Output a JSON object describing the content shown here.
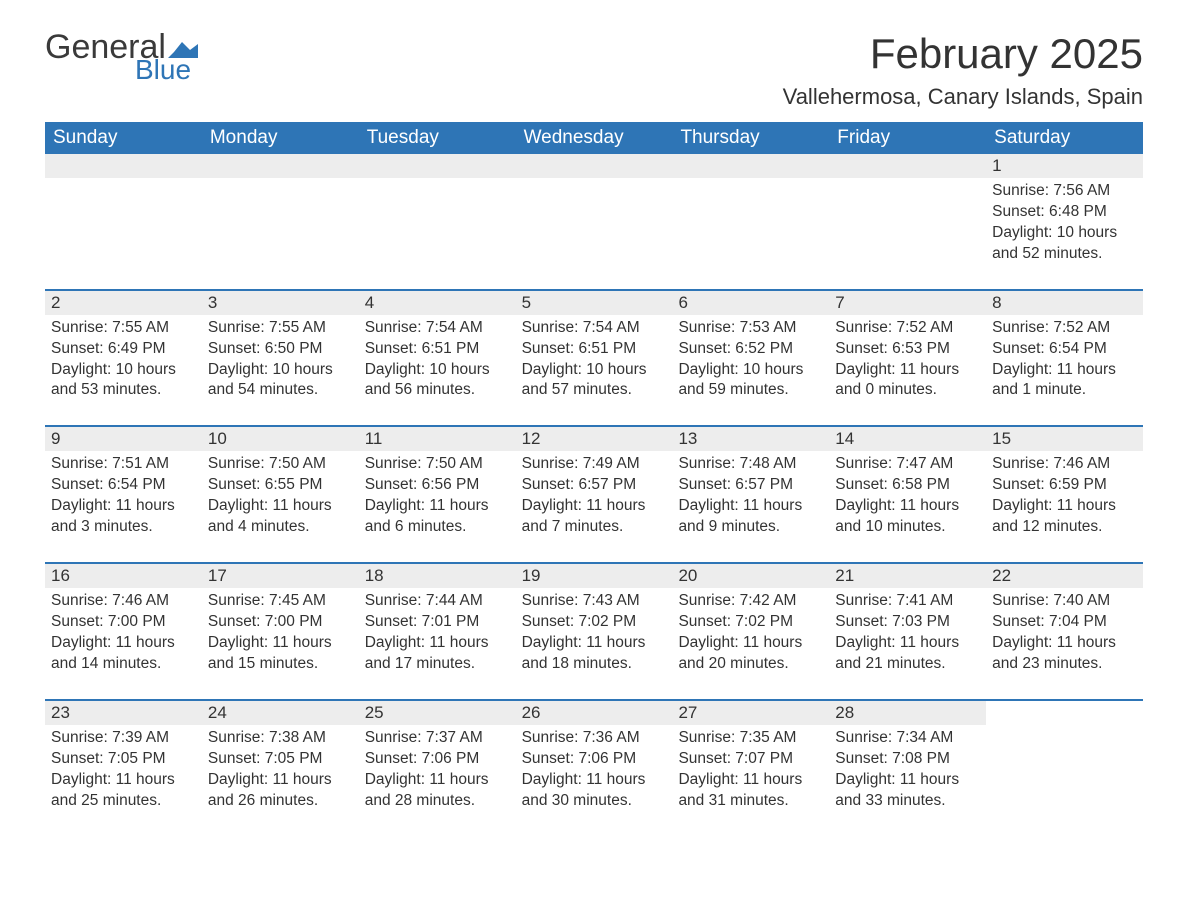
{
  "logo": {
    "general": "General",
    "blue": "Blue",
    "flag_color": "#2e75b6"
  },
  "title": "February 2025",
  "location": "Vallehermosa, Canary Islands, Spain",
  "colors": {
    "header_bg": "#2e75b6",
    "header_text": "#ffffff",
    "daynum_bg": "#ededed",
    "text": "#333333",
    "row_border": "#2e75b6"
  },
  "fonts": {
    "title_size": 42,
    "location_size": 22,
    "dow_size": 19,
    "daynum_size": 17,
    "detail_size": 15.5
  },
  "days_of_week": [
    "Sunday",
    "Monday",
    "Tuesday",
    "Wednesday",
    "Thursday",
    "Friday",
    "Saturday"
  ],
  "weeks": [
    [
      {
        "blank": true
      },
      {
        "blank": true
      },
      {
        "blank": true
      },
      {
        "blank": true
      },
      {
        "blank": true
      },
      {
        "blank": true
      },
      {
        "n": "1",
        "sunrise": "Sunrise: 7:56 AM",
        "sunset": "Sunset: 6:48 PM",
        "daylight": "Daylight: 10 hours and 52 minutes."
      }
    ],
    [
      {
        "n": "2",
        "sunrise": "Sunrise: 7:55 AM",
        "sunset": "Sunset: 6:49 PM",
        "daylight": "Daylight: 10 hours and 53 minutes."
      },
      {
        "n": "3",
        "sunrise": "Sunrise: 7:55 AM",
        "sunset": "Sunset: 6:50 PM",
        "daylight": "Daylight: 10 hours and 54 minutes."
      },
      {
        "n": "4",
        "sunrise": "Sunrise: 7:54 AM",
        "sunset": "Sunset: 6:51 PM",
        "daylight": "Daylight: 10 hours and 56 minutes."
      },
      {
        "n": "5",
        "sunrise": "Sunrise: 7:54 AM",
        "sunset": "Sunset: 6:51 PM",
        "daylight": "Daylight: 10 hours and 57 minutes."
      },
      {
        "n": "6",
        "sunrise": "Sunrise: 7:53 AM",
        "sunset": "Sunset: 6:52 PM",
        "daylight": "Daylight: 10 hours and 59 minutes."
      },
      {
        "n": "7",
        "sunrise": "Sunrise: 7:52 AM",
        "sunset": "Sunset: 6:53 PM",
        "daylight": "Daylight: 11 hours and 0 minutes."
      },
      {
        "n": "8",
        "sunrise": "Sunrise: 7:52 AM",
        "sunset": "Sunset: 6:54 PM",
        "daylight": "Daylight: 11 hours and 1 minute."
      }
    ],
    [
      {
        "n": "9",
        "sunrise": "Sunrise: 7:51 AM",
        "sunset": "Sunset: 6:54 PM",
        "daylight": "Daylight: 11 hours and 3 minutes."
      },
      {
        "n": "10",
        "sunrise": "Sunrise: 7:50 AM",
        "sunset": "Sunset: 6:55 PM",
        "daylight": "Daylight: 11 hours and 4 minutes."
      },
      {
        "n": "11",
        "sunrise": "Sunrise: 7:50 AM",
        "sunset": "Sunset: 6:56 PM",
        "daylight": "Daylight: 11 hours and 6 minutes."
      },
      {
        "n": "12",
        "sunrise": "Sunrise: 7:49 AM",
        "sunset": "Sunset: 6:57 PM",
        "daylight": "Daylight: 11 hours and 7 minutes."
      },
      {
        "n": "13",
        "sunrise": "Sunrise: 7:48 AM",
        "sunset": "Sunset: 6:57 PM",
        "daylight": "Daylight: 11 hours and 9 minutes."
      },
      {
        "n": "14",
        "sunrise": "Sunrise: 7:47 AM",
        "sunset": "Sunset: 6:58 PM",
        "daylight": "Daylight: 11 hours and 10 minutes."
      },
      {
        "n": "15",
        "sunrise": "Sunrise: 7:46 AM",
        "sunset": "Sunset: 6:59 PM",
        "daylight": "Daylight: 11 hours and 12 minutes."
      }
    ],
    [
      {
        "n": "16",
        "sunrise": "Sunrise: 7:46 AM",
        "sunset": "Sunset: 7:00 PM",
        "daylight": "Daylight: 11 hours and 14 minutes."
      },
      {
        "n": "17",
        "sunrise": "Sunrise: 7:45 AM",
        "sunset": "Sunset: 7:00 PM",
        "daylight": "Daylight: 11 hours and 15 minutes."
      },
      {
        "n": "18",
        "sunrise": "Sunrise: 7:44 AM",
        "sunset": "Sunset: 7:01 PM",
        "daylight": "Daylight: 11 hours and 17 minutes."
      },
      {
        "n": "19",
        "sunrise": "Sunrise: 7:43 AM",
        "sunset": "Sunset: 7:02 PM",
        "daylight": "Daylight: 11 hours and 18 minutes."
      },
      {
        "n": "20",
        "sunrise": "Sunrise: 7:42 AM",
        "sunset": "Sunset: 7:02 PM",
        "daylight": "Daylight: 11 hours and 20 minutes."
      },
      {
        "n": "21",
        "sunrise": "Sunrise: 7:41 AM",
        "sunset": "Sunset: 7:03 PM",
        "daylight": "Daylight: 11 hours and 21 minutes."
      },
      {
        "n": "22",
        "sunrise": "Sunrise: 7:40 AM",
        "sunset": "Sunset: 7:04 PM",
        "daylight": "Daylight: 11 hours and 23 minutes."
      }
    ],
    [
      {
        "n": "23",
        "sunrise": "Sunrise: 7:39 AM",
        "sunset": "Sunset: 7:05 PM",
        "daylight": "Daylight: 11 hours and 25 minutes."
      },
      {
        "n": "24",
        "sunrise": "Sunrise: 7:38 AM",
        "sunset": "Sunset: 7:05 PM",
        "daylight": "Daylight: 11 hours and 26 minutes."
      },
      {
        "n": "25",
        "sunrise": "Sunrise: 7:37 AM",
        "sunset": "Sunset: 7:06 PM",
        "daylight": "Daylight: 11 hours and 28 minutes."
      },
      {
        "n": "26",
        "sunrise": "Sunrise: 7:36 AM",
        "sunset": "Sunset: 7:06 PM",
        "daylight": "Daylight: 11 hours and 30 minutes."
      },
      {
        "n": "27",
        "sunrise": "Sunrise: 7:35 AM",
        "sunset": "Sunset: 7:07 PM",
        "daylight": "Daylight: 11 hours and 31 minutes."
      },
      {
        "n": "28",
        "sunrise": "Sunrise: 7:34 AM",
        "sunset": "Sunset: 7:08 PM",
        "daylight": "Daylight: 11 hours and 33 minutes."
      },
      {
        "blank": true,
        "no_bar": true
      }
    ]
  ]
}
